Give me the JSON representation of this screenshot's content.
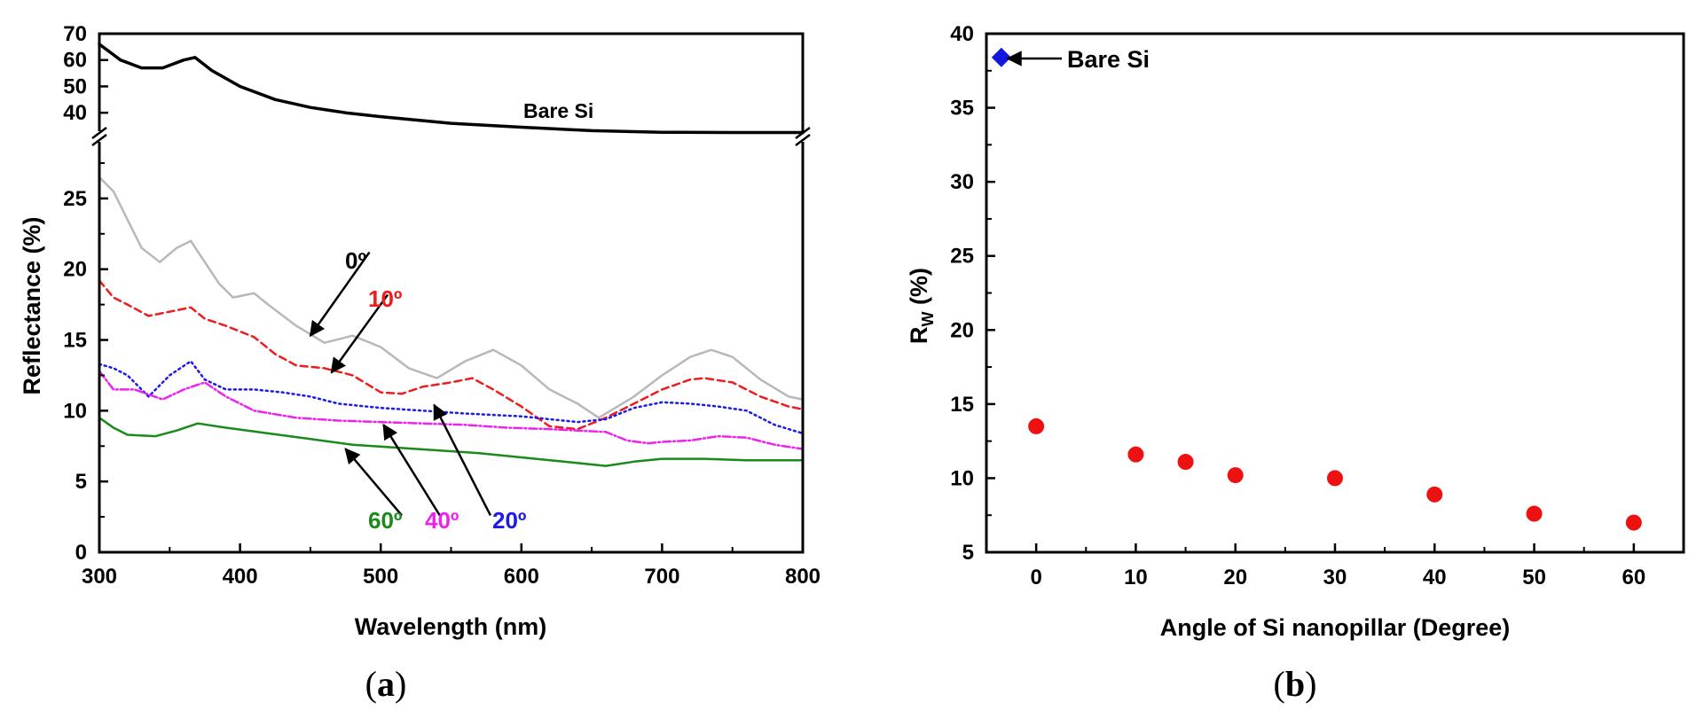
{
  "chart_data": [
    {
      "type": "line",
      "panel_label": "(a)",
      "panel_letter": "a",
      "xlabel": "Wavelength (nm)",
      "ylabel": "Reflectance (%)",
      "xlim": [
        300,
        800
      ],
      "ylim_lower": [
        0,
        29
      ],
      "ylim_upper": [
        33,
        70
      ],
      "x_ticks": [
        "300",
        "400",
        "500",
        "600",
        "700",
        "800"
      ],
      "y_ticks_lower": [
        "0",
        "5",
        "10",
        "15",
        "20",
        "25"
      ],
      "y_ticks_upper": [
        "40",
        "50",
        "60",
        "70"
      ],
      "axis_break": true,
      "series": [
        {
          "name": "Bare Si",
          "label": "Bare Si",
          "color": "#000000",
          "dash": "solid",
          "x": [
            300,
            315,
            330,
            345,
            360,
            368,
            380,
            400,
            425,
            450,
            475,
            500,
            550,
            600,
            650,
            700,
            750,
            800
          ],
          "y": [
            66,
            60,
            57,
            57,
            60,
            61,
            56,
            50,
            45,
            42,
            40,
            38.5,
            36,
            34.5,
            33.2,
            32.6,
            32.5,
            32.5
          ]
        },
        {
          "name": "0°",
          "label": "0º",
          "color": "#b8b8b8",
          "dash": "solid",
          "x": [
            300,
            310,
            320,
            330,
            343,
            355,
            365,
            375,
            385,
            395,
            410,
            420,
            440,
            460,
            480,
            500,
            520,
            540,
            560,
            580,
            600,
            620,
            640,
            655,
            680,
            700,
            720,
            735,
            750,
            770,
            790,
            800
          ],
          "y": [
            26.5,
            25.5,
            23.5,
            21.5,
            20.5,
            21.5,
            22,
            20.5,
            19,
            18,
            18.3,
            17.5,
            16,
            14.8,
            15.3,
            14.5,
            13,
            12.3,
            13.5,
            14.3,
            13.2,
            11.5,
            10.5,
            9.5,
            11,
            12.5,
            13.8,
            14.3,
            13.8,
            12.2,
            11,
            10.8
          ]
        },
        {
          "name": "10°",
          "label": "10º",
          "color": "#ee1c1c",
          "dash": "8,5",
          "x": [
            300,
            310,
            320,
            335,
            350,
            365,
            375,
            390,
            410,
            425,
            440,
            460,
            480,
            500,
            515,
            530,
            550,
            565,
            580,
            600,
            620,
            640,
            660,
            680,
            700,
            720,
            730,
            750,
            770,
            790,
            800
          ],
          "y": [
            19.2,
            18,
            17.5,
            16.7,
            17,
            17.3,
            16.5,
            16,
            15.2,
            14,
            13.2,
            13,
            12.5,
            11.3,
            11.2,
            11.7,
            12,
            12.3,
            11.5,
            10.3,
            8.9,
            8.7,
            9.5,
            10.5,
            11.5,
            12.2,
            12.3,
            12,
            11,
            10.3,
            10.1
          ]
        },
        {
          "name": "20°",
          "label": "20º",
          "color": "#1a1aee",
          "dash": "2,4",
          "x": [
            300,
            310,
            320,
            335,
            350,
            365,
            375,
            390,
            410,
            430,
            450,
            470,
            500,
            530,
            560,
            580,
            600,
            620,
            640,
            660,
            680,
            700,
            720,
            740,
            760,
            780,
            800
          ],
          "y": [
            13.3,
            13,
            12.5,
            11,
            12.5,
            13.5,
            12.2,
            11.5,
            11.5,
            11.3,
            11,
            10.5,
            10.2,
            10,
            9.8,
            9.7,
            9.6,
            9.4,
            9.2,
            9.4,
            10.2,
            10.6,
            10.5,
            10.3,
            10,
            9,
            8.4
          ]
        },
        {
          "name": "40°",
          "label": "40º",
          "color": "#ee22ee",
          "dash": "9,3,2,3",
          "x": [
            300,
            310,
            325,
            345,
            360,
            375,
            390,
            410,
            440,
            470,
            500,
            530,
            560,
            590,
            620,
            640,
            660,
            675,
            690,
            700,
            720,
            740,
            760,
            780,
            800
          ],
          "y": [
            12.8,
            11.5,
            11.5,
            10.8,
            11.5,
            12,
            11,
            10,
            9.5,
            9.3,
            9.2,
            9.1,
            9,
            8.8,
            8.7,
            8.6,
            8.5,
            7.9,
            7.7,
            7.8,
            7.9,
            8.2,
            8.1,
            7.6,
            7.3
          ]
        },
        {
          "name": "60°",
          "label": "60º",
          "color": "#1a8a1a",
          "dash": "solid",
          "x": [
            300,
            310,
            320,
            340,
            355,
            370,
            390,
            420,
            450,
            480,
            510,
            540,
            570,
            600,
            630,
            660,
            680,
            700,
            730,
            760,
            800
          ],
          "y": [
            9.5,
            8.8,
            8.3,
            8.2,
            8.6,
            9.1,
            8.8,
            8.4,
            8.0,
            7.6,
            7.4,
            7.2,
            7,
            6.7,
            6.4,
            6.1,
            6.4,
            6.6,
            6.6,
            6.5,
            6.5
          ]
        }
      ],
      "arrows": [
        {
          "target": "0°",
          "tip": [
            450,
            15.3
          ],
          "tail": [
            492,
            21.2
          ]
        },
        {
          "target": "10°",
          "tip": [
            465,
            12.7
          ],
          "tail": [
            505,
            18.2
          ]
        },
        {
          "target": "20°",
          "tip": [
            538,
            10.4
          ],
          "tail": [
            578,
            2.6
          ]
        },
        {
          "target": "40°",
          "tip": [
            502,
            9.0
          ],
          "tail": [
            542,
            2.6
          ]
        },
        {
          "target": "60°",
          "tip": [
            475,
            7.3
          ],
          "tail": [
            515,
            2.6
          ]
        }
      ]
    },
    {
      "type": "scatter",
      "panel_label": "(b)",
      "panel_letter": "b",
      "xlabel": "Angle of Si nanopillar (Degree)",
      "ylabel_main": "R",
      "ylabel_sub": "W",
      "ylabel_unit": " (%)",
      "xlim": [
        -5,
        65
      ],
      "ylim": [
        5,
        40
      ],
      "x_ticks": [
        "0",
        "10",
        "20",
        "30",
        "40",
        "50",
        "60"
      ],
      "y_ticks": [
        "5",
        "10",
        "15",
        "20",
        "25",
        "30",
        "35",
        "40"
      ],
      "annotation": "Bare Si",
      "series": [
        {
          "name": "Bare Si",
          "marker": "diamond",
          "color": "#1515e0",
          "x": [
            -3.5
          ],
          "y": [
            38.4
          ]
        },
        {
          "name": "Si nanopillar",
          "marker": "circle",
          "color": "#ee1111",
          "x": [
            0,
            10,
            15,
            20,
            30,
            40,
            50,
            60
          ],
          "y": [
            13.5,
            11.6,
            11.1,
            10.2,
            10.0,
            8.9,
            7.6,
            7.0
          ]
        }
      ]
    }
  ]
}
